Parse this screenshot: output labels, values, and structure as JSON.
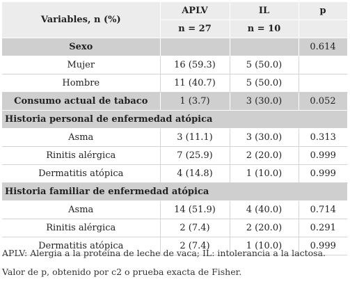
{
  "header": {
    "variables": "Variables, n (%)",
    "aplv": "APLV",
    "il": "IL",
    "p": "p",
    "aplv_n": "n = 27",
    "il_n": "n = 10"
  },
  "rows": [
    {
      "type": "section-inline",
      "label": "Sexo",
      "aplv": "",
      "il": "",
      "p": "0.614"
    },
    {
      "type": "data",
      "label": "Mujer",
      "aplv": "16 (59.3)",
      "il": "5 (50.0)",
      "p": ""
    },
    {
      "type": "data",
      "label": "Hombre",
      "aplv": "11 (40.7)",
      "il": "5 (50.0)",
      "p": ""
    },
    {
      "type": "section-inline",
      "label": "Consumo actual de tabaco",
      "aplv": "1 (3.7)",
      "il": "3 (30.0)",
      "p": "0.052"
    },
    {
      "type": "section-full",
      "label": "Historia personal de enfermedad atópica"
    },
    {
      "type": "data",
      "label": "Asma",
      "aplv": "3 (11.1)",
      "il": "3 (30.0)",
      "p": "0.313"
    },
    {
      "type": "data",
      "label": "Rinitis alérgica",
      "aplv": "7 (25.9)",
      "il": "2 (20.0)",
      "p": "0.999"
    },
    {
      "type": "data",
      "label": "Dermatitis atópica",
      "aplv": "4 (14.8)",
      "il": "1 (10.0)",
      "p": "0.999"
    },
    {
      "type": "section-full",
      "label": "Historia familiar de enfermedad atópica"
    },
    {
      "type": "data",
      "label": "Asma",
      "aplv": "14 (51.9)",
      "il": "4 (40.0)",
      "p": "0.714"
    },
    {
      "type": "data",
      "label": "Rinitis alérgica",
      "aplv": "2 (7.4)",
      "il": "2 (20.0)",
      "p": "0.291"
    },
    {
      "type": "data",
      "label": "Dermatitis atópica",
      "aplv": "2 (7.4)",
      "il": "1 (10.0)",
      "p": "0.999"
    }
  ],
  "footnotes": [
    "APLV: Alergia a la proteína de leche de vaca; IL: intolerancia a la lactosa.",
    "Valor de p, obtenido por c2 o prueba exacta de Fisher."
  ]
}
